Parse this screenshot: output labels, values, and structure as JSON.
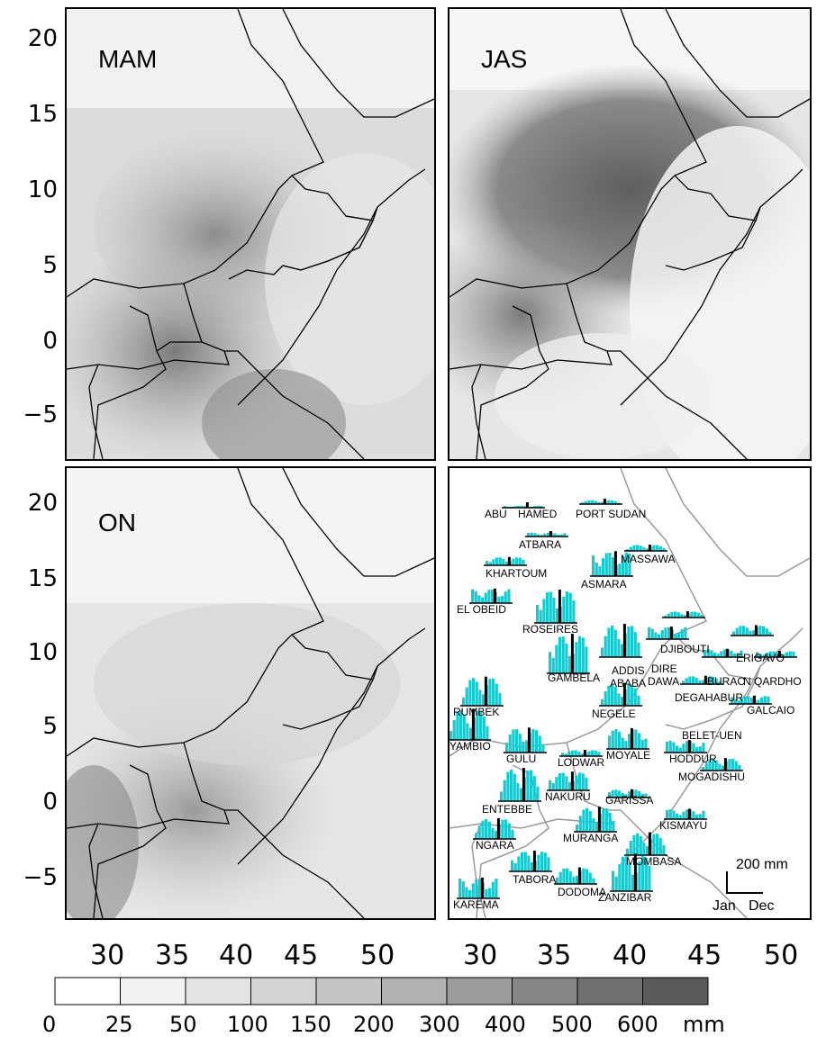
{
  "panels": {
    "mam": {
      "label": "MAM"
    },
    "jas": {
      "label": "JAS"
    },
    "on": {
      "label": "ON"
    }
  },
  "y_ticks": [
    "20",
    "15",
    "10",
    "5",
    "0",
    "−5"
  ],
  "x_ticks": [
    "30",
    "35",
    "40",
    "45",
    "50"
  ],
  "colorbar": {
    "labels": [
      "0",
      "25",
      "50",
      "100",
      "150",
      "200",
      "300",
      "400",
      "500",
      "600"
    ],
    "unit": "mm",
    "colors": [
      "#ffffff",
      "#f2f2f2",
      "#e3e3e3",
      "#d3d3d3",
      "#c4c4c4",
      "#b1b1b1",
      "#9c9c9c",
      "#868686",
      "#707070",
      "#5a5a5a"
    ]
  },
  "stations": [
    {
      "name": "ABU"
    },
    {
      "name": "HAMED"
    },
    {
      "name": "PORT SUDAN"
    },
    {
      "name": "ATBARA"
    },
    {
      "name": "MASSAWA"
    },
    {
      "name": "KHARTOUM"
    },
    {
      "name": "ASMARA"
    },
    {
      "name": "EL OBEID"
    },
    {
      "name": "DJIBOUTI"
    },
    {
      "name": "ROSEIRES"
    },
    {
      "name": "ERIGAVO"
    },
    {
      "name": "DIRE"
    },
    {
      "name": "DAWA"
    },
    {
      "name": "ADDIS"
    },
    {
      "name": "ABABA"
    },
    {
      "name": "BURAO"
    },
    {
      "name": "N QARDHO"
    },
    {
      "name": "GAMBELA"
    },
    {
      "name": "DEGAHABUR"
    },
    {
      "name": "RUMBEK"
    },
    {
      "name": "GALCAIO"
    },
    {
      "name": "NEGELE"
    },
    {
      "name": "BELET-UEN"
    },
    {
      "name": "YAMBIO"
    },
    {
      "name": "GULU"
    },
    {
      "name": "LODWAR"
    },
    {
      "name": "MOYALE"
    },
    {
      "name": "HODDUR"
    },
    {
      "name": "MOGADISHU"
    },
    {
      "name": "NAKURU"
    },
    {
      "name": "GARISSA"
    },
    {
      "name": "ENTEBBE"
    },
    {
      "name": "KISMAYU"
    },
    {
      "name": "NGARA"
    },
    {
      "name": "MURANGA"
    },
    {
      "name": "MOMBASA"
    },
    {
      "name": "TABORA"
    },
    {
      "name": "DODOMA"
    },
    {
      "name": "ZANZIBAR"
    },
    {
      "name": "KAREMA"
    }
  ],
  "scale": {
    "amount": "200 mm",
    "start": "Jan",
    "end": "Dec"
  }
}
